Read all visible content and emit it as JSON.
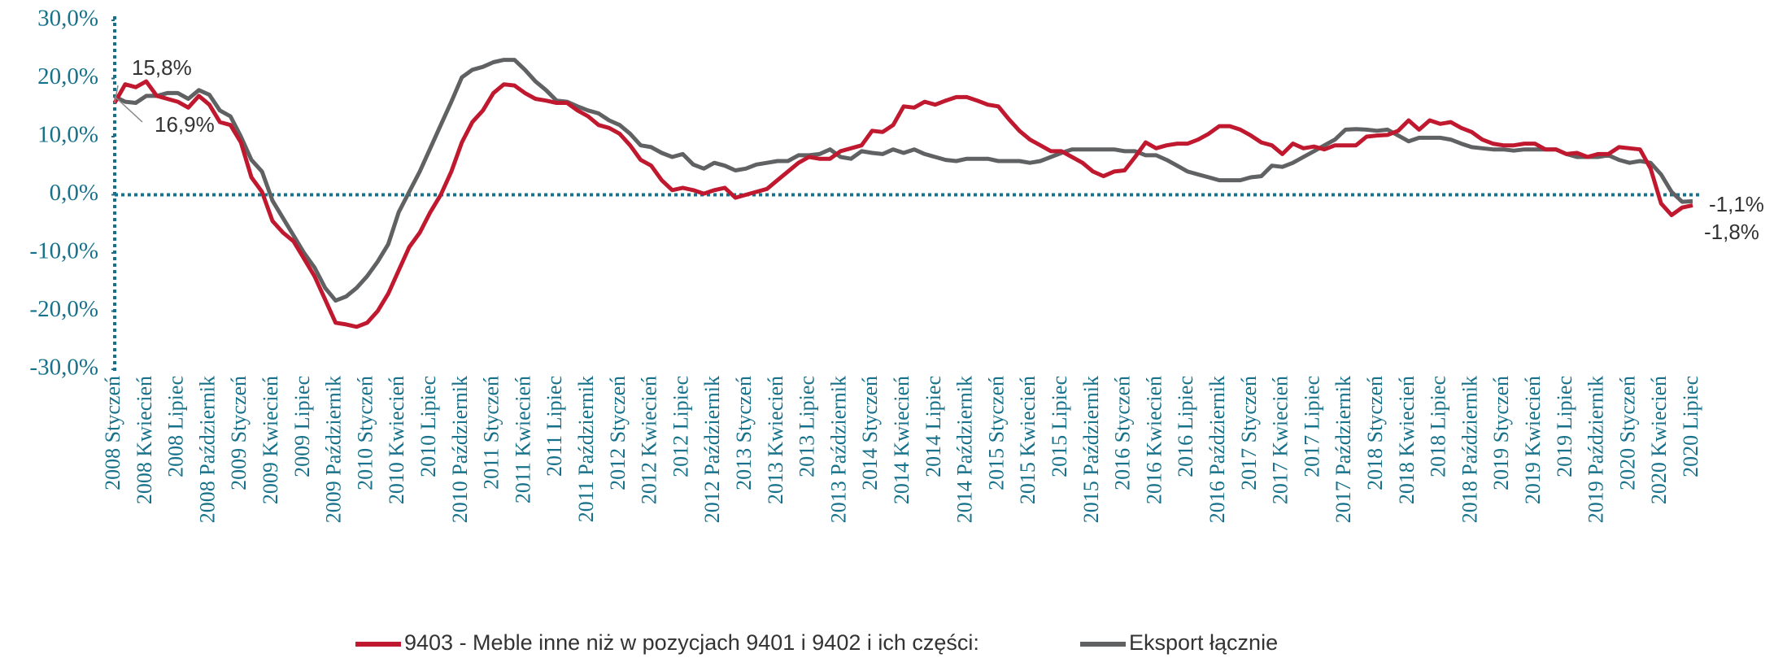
{
  "chart_data": {
    "type": "line",
    "categories": [
      "2008 Styczeń",
      null,
      null,
      "2008 Kwiecień",
      null,
      null,
      "2008 Lipiec",
      null,
      null,
      "2008 Październik",
      null,
      null,
      "2009 Styczeń",
      null,
      null,
      "2009 Kwiecień",
      null,
      null,
      "2009 Lipiec",
      null,
      null,
      "2009 Październik",
      null,
      null,
      "2010 Styczeń",
      null,
      null,
      "2010 Kwiecień",
      null,
      null,
      "2010 Lipiec",
      null,
      null,
      "2010 Październik",
      null,
      null,
      "2011 Styczeń",
      null,
      null,
      "2011 Kwiecień",
      null,
      null,
      "2011 Lipiec",
      null,
      null,
      "2011 Październik",
      null,
      null,
      "2012 Styczeń",
      null,
      null,
      "2012 Kwiecień",
      null,
      null,
      "2012 Lipiec",
      null,
      null,
      "2012 Październik",
      null,
      null,
      "2013 Styczeń",
      null,
      null,
      "2013 Kwiecień",
      null,
      null,
      "2013 Lipiec",
      null,
      null,
      "2013 Październik",
      null,
      null,
      "2014 Styczeń",
      null,
      null,
      "2014 Kwiecień",
      null,
      null,
      "2014 Lipiec",
      null,
      null,
      "2014 Październik",
      null,
      null,
      "2015 Styczeń",
      null,
      null,
      "2015 Kwiecień",
      null,
      null,
      "2015 Lipiec",
      null,
      null,
      "2015 Październik",
      null,
      null,
      "2016 Styczeń",
      null,
      null,
      "2016 Kwiecień",
      null,
      null,
      "2016 Lipiec",
      null,
      null,
      "2016 Październik",
      null,
      null,
      "2017 Styczeń",
      null,
      null,
      "2017 Kwiecień",
      null,
      null,
      "2017 Lipiec",
      null,
      null,
      "2017 Październik",
      null,
      null,
      "2018 Styczeń",
      null,
      null,
      "2018 Kwiecień",
      null,
      null,
      "2018 Lipiec",
      null,
      null,
      "2018 Październik",
      null,
      null,
      "2019 Styczeń",
      null,
      null,
      "2019 Kwiecień",
      null,
      null,
      "2019 Lipiec",
      null,
      null,
      "2019 Październik",
      null,
      null,
      "2020 Styczeń",
      null,
      null,
      "2020 Kwiecień",
      null,
      null,
      "2020 Lipiec"
    ],
    "series": [
      {
        "name": "9403 - Meble inne niż w pozycjach 9401 i 9402 i ich części:",
        "color": "#c0182e",
        "values": [
          15.8,
          19,
          18.5,
          19.5,
          17,
          16.5,
          16,
          15,
          17,
          15.5,
          12.5,
          12,
          9,
          3,
          0.5,
          -4.5,
          -6.5,
          -8,
          -11,
          -14,
          -18,
          -22,
          -22.3,
          -22.7,
          -22,
          -20,
          -17,
          -13,
          -9,
          -6.5,
          -3,
          0,
          4,
          9,
          12.5,
          14.5,
          17.5,
          19,
          18.8,
          17.5,
          16.5,
          16.2,
          15.8,
          15.8,
          14.5,
          13.5,
          12,
          11.5,
          10.5,
          8.5,
          6,
          5,
          2.5,
          0.8,
          1.2,
          0.8,
          0.2,
          0.8,
          1.2,
          -0.5,
          0,
          0.5,
          1,
          2.5,
          4,
          5.5,
          6.5,
          6.2,
          6.2,
          7.5,
          8,
          8.5,
          11,
          10.8,
          12,
          15.2,
          15,
          16,
          15.5,
          16.2,
          16.8,
          16.8,
          16.2,
          15.5,
          15.2,
          13,
          11,
          9.5,
          8.5,
          7.5,
          7.5,
          6.5,
          5.5,
          4,
          3.2,
          4,
          4.2,
          6.5,
          9,
          8,
          8.5,
          8.8,
          8.8,
          9.5,
          10.5,
          11.8,
          11.8,
          11.2,
          10.2,
          9,
          8.5,
          7,
          8.8,
          8,
          8.3,
          7.8,
          8.5,
          8.5,
          8.5,
          10,
          10.2,
          10.3,
          11,
          12.8,
          11.2,
          12.8,
          12.2,
          12.5,
          11.5,
          10.8,
          9.5,
          8.8,
          8.5,
          8.5,
          8.8,
          8.8,
          7.8,
          7.8,
          7,
          7.2,
          6.5,
          7,
          7,
          8.2,
          8,
          7.8,
          4.5,
          -1.5,
          -3.5,
          -2.2,
          -1.8
        ],
        "value_labels": [
          "15,8%",
          null,
          null,
          null,
          null,
          null,
          null,
          null,
          null,
          null,
          null,
          null,
          null,
          null,
          null,
          null,
          null,
          null,
          null,
          null,
          null,
          null,
          null,
          null,
          null,
          null,
          null,
          null,
          null,
          null,
          null,
          null,
          null,
          null,
          null,
          null,
          null,
          null,
          null,
          null,
          null,
          null,
          null,
          null,
          null,
          null,
          null,
          null,
          null,
          null,
          null,
          null,
          null,
          null,
          null,
          null,
          null,
          null,
          null,
          null,
          null,
          null,
          null,
          null,
          null,
          null,
          null,
          null,
          null,
          null,
          null,
          null,
          null,
          null,
          null,
          null,
          null,
          null,
          null,
          null,
          null,
          null,
          null,
          null,
          null,
          null,
          null,
          null,
          null,
          null,
          null,
          null,
          null,
          null,
          null,
          null,
          null,
          null,
          null,
          null,
          null,
          null,
          null,
          null,
          null,
          null,
          null,
          null,
          null,
          null,
          null,
          null,
          null,
          null,
          null,
          null,
          null,
          null,
          null,
          null,
          null,
          null,
          null,
          null,
          null,
          null,
          null,
          null,
          null,
          null,
          null,
          null,
          null,
          null,
          null,
          null,
          null,
          null,
          null,
          null,
          null,
          null,
          null,
          null,
          null,
          null,
          null,
          null,
          null,
          null,
          "-1,8%"
        ]
      },
      {
        "name": "Eksport łącznie",
        "color": "#5f6163",
        "values": [
          16.9,
          16,
          15.8,
          17,
          17,
          17.5,
          17.5,
          16.5,
          18,
          17.2,
          14.5,
          13.5,
          10,
          6,
          4,
          -1,
          -4,
          -7,
          -10,
          -12.5,
          -16,
          -18.2,
          -17.5,
          -16,
          -14,
          -11.5,
          -8.5,
          -3,
          0.5,
          4,
          8,
          12,
          16,
          20.2,
          21.5,
          22,
          22.8,
          23.2,
          23.2,
          21.5,
          19.5,
          18,
          16.2,
          16,
          15.2,
          14.5,
          14,
          12.8,
          12,
          10.5,
          8.5,
          8.2,
          7.2,
          6.5,
          7,
          5.2,
          4.5,
          5.5,
          5,
          4.2,
          4.5,
          5.2,
          5.5,
          5.8,
          5.8,
          6.8,
          6.8,
          7,
          7.8,
          6.5,
          6.2,
          7.5,
          7.2,
          7,
          7.8,
          7.2,
          7.8,
          7,
          6.5,
          6,
          5.8,
          6.2,
          6.2,
          6.2,
          5.8,
          5.8,
          5.8,
          5.5,
          5.8,
          6.5,
          7.2,
          7.8,
          7.8,
          7.8,
          7.8,
          7.8,
          7.5,
          7.5,
          6.8,
          6.8,
          6,
          5,
          4,
          3.5,
          3,
          2.5,
          2.5,
          2.5,
          3,
          3.2,
          5,
          4.8,
          5.5,
          6.5,
          7.5,
          8.5,
          9.5,
          11.2,
          11.3,
          11.2,
          11,
          11.2,
          10.2,
          9.2,
          9.8,
          9.8,
          9.8,
          9.5,
          8.8,
          8.2,
          8,
          7.8,
          7.8,
          7.6,
          7.8,
          7.8,
          7.8,
          7.8,
          7,
          6.5,
          6.5,
          6.5,
          6.8,
          6,
          5.5,
          5.8,
          5.5,
          3.5,
          0.5,
          -1.2,
          -1.1
        ],
        "value_labels": [
          "16,9%",
          null,
          null,
          null,
          null,
          null,
          null,
          null,
          null,
          null,
          null,
          null,
          null,
          null,
          null,
          null,
          null,
          null,
          null,
          null,
          null,
          null,
          null,
          null,
          null,
          null,
          null,
          null,
          null,
          null,
          null,
          null,
          null,
          null,
          null,
          null,
          null,
          null,
          null,
          null,
          null,
          null,
          null,
          null,
          null,
          null,
          null,
          null,
          null,
          null,
          null,
          null,
          null,
          null,
          null,
          null,
          null,
          null,
          null,
          null,
          null,
          null,
          null,
          null,
          null,
          null,
          null,
          null,
          null,
          null,
          null,
          null,
          null,
          null,
          null,
          null,
          null,
          null,
          null,
          null,
          null,
          null,
          null,
          null,
          null,
          null,
          null,
          null,
          null,
          null,
          null,
          null,
          null,
          null,
          null,
          null,
          null,
          null,
          null,
          null,
          null,
          null,
          null,
          null,
          null,
          null,
          null,
          null,
          null,
          null,
          null,
          null,
          null,
          null,
          null,
          null,
          null,
          null,
          null,
          null,
          null,
          null,
          null,
          null,
          null,
          null,
          null,
          null,
          null,
          null,
          null,
          null,
          null,
          null,
          null,
          null,
          null,
          null,
          null,
          null,
          null,
          null,
          null,
          null,
          null,
          null,
          null,
          null,
          null,
          null,
          "-1,1%"
        ]
      }
    ],
    "ylim": [
      -30,
      30
    ],
    "yticks": [
      {
        "value": -30,
        "label": "-30,0%"
      },
      {
        "value": -20,
        "label": "-20,0%"
      },
      {
        "value": -10,
        "label": "-10,0%"
      },
      {
        "value": 0,
        "label": "0,0%"
      },
      {
        "value": 10,
        "label": "10,0%"
      },
      {
        "value": 20,
        "label": "20,0%"
      },
      {
        "value": 30,
        "label": "30,0%"
      }
    ],
    "grid": false,
    "legend": "bottom"
  }
}
